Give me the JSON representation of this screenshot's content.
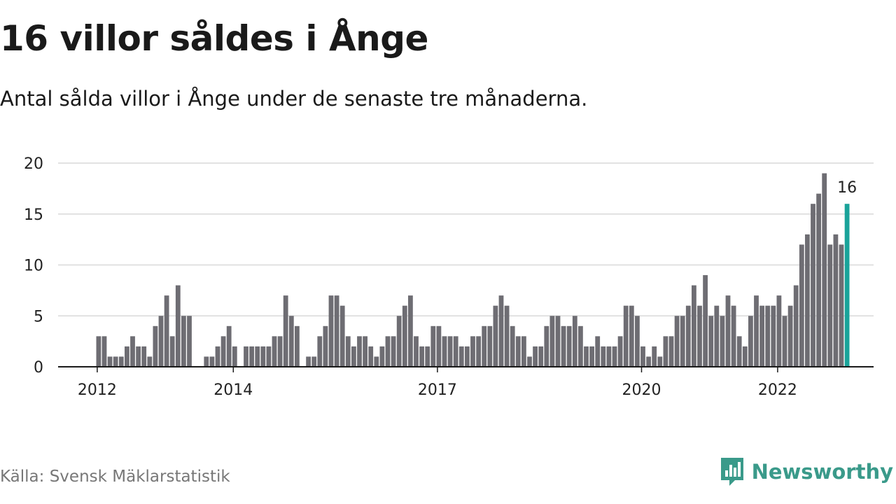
{
  "title": "16 villor såldes i Ånge",
  "subtitle": "Antal sålda villor i Ånge under de senaste tre månaderna.",
  "source": "Källa: Svensk Mäklarstatistik",
  "brand": "Newsworthy",
  "colors": {
    "bar": "#6e6d73",
    "highlight": "#1aa39a",
    "grid": "#d9d9d9",
    "axis": "#1a1a1a",
    "brand": "#3a9a8a"
  },
  "chart_data": {
    "type": "bar",
    "title": "16 villor såldes i Ånge",
    "subtitle": "Antal sålda villor i Ånge under de senaste tre månaderna.",
    "xlabel": "",
    "ylabel": "",
    "ylim": [
      0,
      20
    ],
    "yticks": [
      0,
      5,
      10,
      15,
      20
    ],
    "xticks": [
      {
        "label": "2012",
        "index": 0
      },
      {
        "label": "2014",
        "index": 24
      },
      {
        "label": "2017",
        "index": 60
      },
      {
        "label": "2020",
        "index": 96
      },
      {
        "label": "2022",
        "index": 120
      }
    ],
    "grid": true,
    "series": [
      {
        "values": [
          3,
          3,
          1,
          1,
          1,
          2,
          3,
          2,
          2,
          1,
          4,
          5,
          7,
          3,
          8,
          5,
          5,
          0,
          0,
          1,
          1,
          2,
          3,
          4,
          2,
          0,
          2,
          2,
          2,
          2,
          2,
          3,
          3,
          7,
          5,
          4,
          0,
          1,
          1,
          3,
          4,
          7,
          7,
          6,
          3,
          2,
          3,
          3,
          2,
          1,
          2,
          3,
          3,
          5,
          6,
          7,
          3,
          2,
          2,
          4,
          4,
          3,
          3,
          3,
          2,
          2,
          3,
          3,
          4,
          4,
          6,
          7,
          6,
          4,
          3,
          3,
          1,
          2,
          2,
          4,
          5,
          5,
          4,
          4,
          5,
          4,
          2,
          2,
          3,
          2,
          2,
          2,
          3,
          6,
          6,
          5,
          2,
          1,
          2,
          1,
          3,
          3,
          5,
          5,
          6,
          8,
          6,
          9,
          5,
          6,
          5,
          7,
          6,
          3,
          2,
          5,
          7,
          6,
          6,
          6,
          7,
          5,
          6,
          8,
          12,
          13,
          16,
          17,
          19,
          12,
          13,
          12,
          16
        ]
      }
    ],
    "highlight_index": 132,
    "highlight_label": "16"
  }
}
